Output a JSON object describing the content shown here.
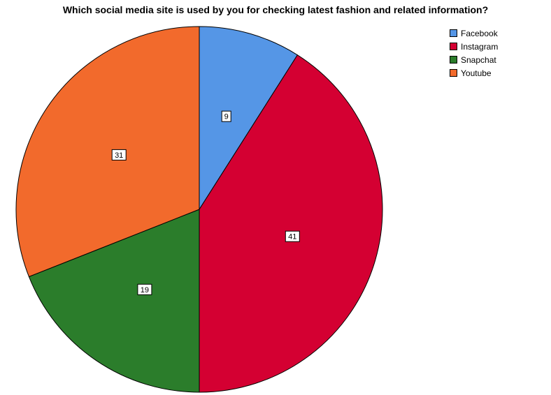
{
  "chart_data": {
    "type": "pie",
    "title": "Which social media site is used by you for checking latest fashion and related information?",
    "categories": [
      "Facebook",
      "Instagram",
      "Snapchat",
      "Youtube"
    ],
    "values": [
      9,
      41,
      19,
      31
    ],
    "colors": [
      "#5596e6",
      "#d40032",
      "#2b7d2b",
      "#f26a2c"
    ],
    "start_angle_deg": 0,
    "direction": "clockwise",
    "data_labels": [
      "9",
      "41",
      "19",
      "31"
    ],
    "legend": {
      "position": "top-right",
      "entries": [
        "Facebook",
        "Instagram",
        "Snapchat",
        "Youtube"
      ]
    }
  }
}
